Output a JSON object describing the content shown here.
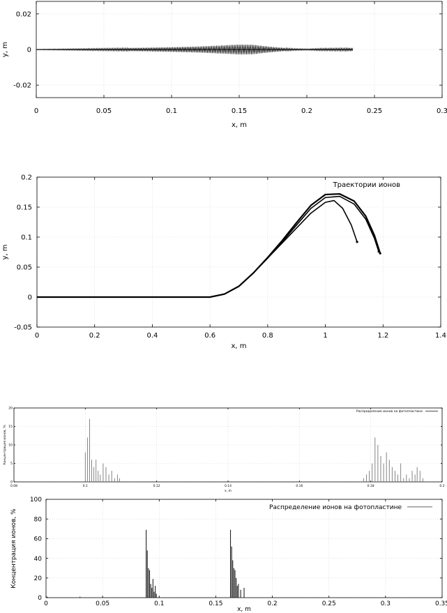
{
  "chart_data": [
    {
      "type": "line",
      "xlabel": "x, m",
      "ylabel": "y, m",
      "xlim": [
        0,
        0.3
      ],
      "ylim": [
        -0.027,
        0.027
      ],
      "xticks": [
        0,
        0.05,
        0.1,
        0.15,
        0.2,
        0.25,
        0.3
      ],
      "xtick_labels": [
        "0",
        "0.05",
        "0.1",
        "0.15",
        "0.2",
        "0.25",
        "0.3"
      ],
      "yticks": [
        -0.02,
        0,
        0.02
      ],
      "ytick_labels": [
        "-0.02",
        "0",
        "0.02"
      ],
      "grid": true,
      "series": [
        {
          "envelope_x": [
            0,
            0.02,
            0.05,
            0.08,
            0.1,
            0.12,
            0.14,
            0.15,
            0.16,
            0.17,
            0.18,
            0.19,
            0.2,
            0.21,
            0.22,
            0.234
          ],
          "envelope_y": [
            0.0002,
            0.0004,
            0.0007,
            0.001,
            0.0013,
            0.0017,
            0.0024,
            0.0028,
            0.0027,
            0.0018,
            0.0011,
            0.0006,
            0.0004,
            0.0007,
            0.0008,
            0.0009
          ]
        }
      ]
    },
    {
      "type": "line",
      "xlabel": "x, m",
      "ylabel": "y, m",
      "xlim": [
        0,
        1.4
      ],
      "ylim": [
        -0.05,
        0.2
      ],
      "xticks": [
        0,
        0.2,
        0.4,
        0.6,
        0.8,
        1,
        1.2,
        1.4
      ],
      "xtick_labels": [
        "0",
        "0.2",
        "0.4",
        "0.6",
        "0.8",
        "1",
        "1.2",
        "1.4"
      ],
      "yticks": [
        -0.05,
        0,
        0.05,
        0.1,
        0.15,
        0.2
      ],
      "ytick_labels": [
        "-0.05",
        "0",
        "0.05",
        "0.1",
        "0.15",
        "0.2"
      ],
      "grid": true,
      "legend": {
        "position": "top-right",
        "entries": [
          "Траектории ионов"
        ]
      },
      "series": [
        {
          "name": "Траектории ионов",
          "trajectories": [
            {
              "x": [
                0,
                0.6,
                0.65,
                0.7,
                0.75,
                0.8,
                0.85,
                0.9,
                0.95,
                1.0,
                1.03,
                1.06,
                1.09,
                1.11
              ],
              "y": [
                0,
                0,
                0.005,
                0.018,
                0.04,
                0.065,
                0.09,
                0.115,
                0.14,
                0.158,
                0.161,
                0.148,
                0.12,
                0.092
              ]
            },
            {
              "x": [
                0,
                0.6,
                0.65,
                0.7,
                0.75,
                0.8,
                0.85,
                0.9,
                0.95,
                1.0,
                1.05,
                1.1,
                1.14,
                1.17,
                1.185
              ],
              "y": [
                0,
                0,
                0.005,
                0.018,
                0.04,
                0.065,
                0.092,
                0.12,
                0.148,
                0.166,
                0.168,
                0.155,
                0.13,
                0.098,
                0.076
              ]
            },
            {
              "x": [
                0,
                0.6,
                0.65,
                0.7,
                0.75,
                0.8,
                0.85,
                0.9,
                0.95,
                1.0,
                1.05,
                1.1,
                1.14,
                1.17,
                1.19
              ],
              "y": [
                0,
                0,
                0.005,
                0.018,
                0.04,
                0.066,
                0.094,
                0.124,
                0.153,
                0.171,
                0.172,
                0.16,
                0.135,
                0.103,
                0.073
              ]
            }
          ]
        }
      ]
    },
    {
      "type": "line",
      "xlabel": "x, m",
      "ylabel": "Концентрация ионов, %",
      "xlim": [
        0.08,
        0.2
      ],
      "ylim": [
        0,
        20
      ],
      "xticks": [
        0.08,
        0.1,
        0.12,
        0.14,
        0.16,
        0.18,
        0.2
      ],
      "xtick_labels": [
        "0.08",
        "0.1",
        "0.12",
        "0.14",
        "0.16",
        "0.18",
        "0.2"
      ],
      "yticks": [
        0,
        5,
        10,
        15,
        20
      ],
      "ytick_labels": [
        "0",
        "5",
        "10",
        "15",
        "20"
      ],
      "grid": true,
      "legend": {
        "position": "top-right",
        "entries": [
          "Распределение ионов на фотопластине"
        ]
      },
      "series": [
        {
          "name": "Распределение ионов на фотопластине",
          "x": [
            0.1,
            0.1006,
            0.1012,
            0.1018,
            0.1024,
            0.103,
            0.1036,
            0.1042,
            0.105,
            0.1058,
            0.1066,
            0.1074,
            0.1082,
            0.109,
            0.1096,
            0.178,
            0.1788,
            0.1796,
            0.1804,
            0.1812,
            0.182,
            0.1828,
            0.1836,
            0.1844,
            0.1852,
            0.186,
            0.1868,
            0.1876,
            0.1884,
            0.1892,
            0.19,
            0.1908,
            0.1916,
            0.1924,
            0.193,
            0.1938,
            0.1946
          ],
          "y": [
            8,
            12,
            17,
            6,
            4,
            6,
            3,
            2,
            5,
            4,
            2,
            3,
            1,
            2,
            1,
            1,
            2,
            3,
            5,
            12,
            10,
            7,
            5,
            8,
            6,
            4,
            3,
            2,
            5,
            1,
            2,
            1,
            3,
            2,
            4,
            3,
            1
          ]
        }
      ]
    },
    {
      "type": "line",
      "xlabel": "x, m",
      "ylabel": "Концентрация ионов, %",
      "xlim": [
        0,
        0.35
      ],
      "ylim": [
        0,
        100
      ],
      "xticks": [
        0,
        0.05,
        0.1,
        0.15,
        0.2,
        0.25,
        0.3,
        0.35
      ],
      "xtick_labels": [
        "0",
        "0.05",
        "0.1",
        "0.15",
        "0.2",
        "0.25",
        "0.3",
        "0.35"
      ],
      "yticks": [
        0,
        20,
        40,
        60,
        80,
        100
      ],
      "ytick_labels": [
        "0",
        "20",
        "40",
        "60",
        "80",
        "100"
      ],
      "grid": true,
      "legend": {
        "position": "top-right",
        "entries": [
          "Распределение ионов на фотопластине"
        ]
      },
      "series": [
        {
          "name": "Распределение ионов на фотопластине",
          "x": [
            0.001,
            0.03,
            0.0885,
            0.0895,
            0.0905,
            0.0915,
            0.0925,
            0.0935,
            0.0945,
            0.0955,
            0.0965,
            0.0975,
            0.1,
            0.163,
            0.164,
            0.165,
            0.166,
            0.167,
            0.168,
            0.169,
            0.17,
            0.172,
            0.175
          ],
          "y": [
            1,
            1,
            69,
            48,
            30,
            28,
            14,
            10,
            19,
            6,
            12,
            4,
            1,
            69,
            52,
            38,
            30,
            28,
            20,
            12,
            14,
            8,
            10
          ]
        }
      ]
    }
  ]
}
